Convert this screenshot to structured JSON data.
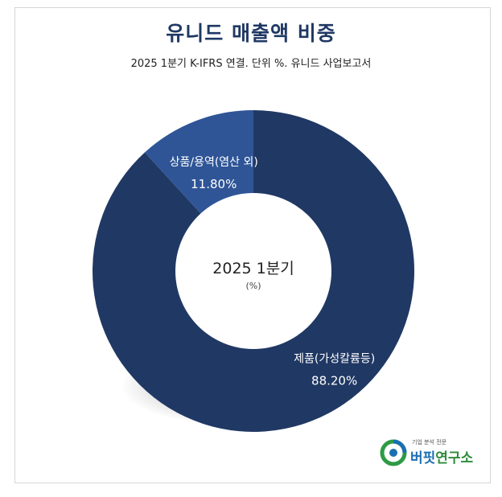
{
  "header": {
    "title": "유니드 매출액 비중",
    "subtitle": "2025 1분기 K-IFRS 연결. 단위 %. 유니드 사업보고서"
  },
  "center": {
    "label": "2025 1분기",
    "unit": "(%)"
  },
  "logo": {
    "tagline": "기업 분석 전문",
    "name_part1": "버핏",
    "name_part2": "연구소"
  },
  "colors": {
    "primary_slice": "#203864",
    "secondary_slice": "#2f5597",
    "title": "#1f3864"
  },
  "chart_data": {
    "type": "pie",
    "style": "donut",
    "title": "유니드 매출액 비중",
    "subtitle": "2025 1분기 K-IFRS 연결. 단위 %. 유니드 사업보고서",
    "categories": [
      "제품(가성칼륨등)",
      "상품/용역(염산 외)"
    ],
    "values": [
      88.2,
      11.8
    ],
    "value_labels": [
      "88.20%",
      "11.80%"
    ],
    "start": "12 o'clock",
    "direction": "clockwise",
    "legend": "none"
  }
}
